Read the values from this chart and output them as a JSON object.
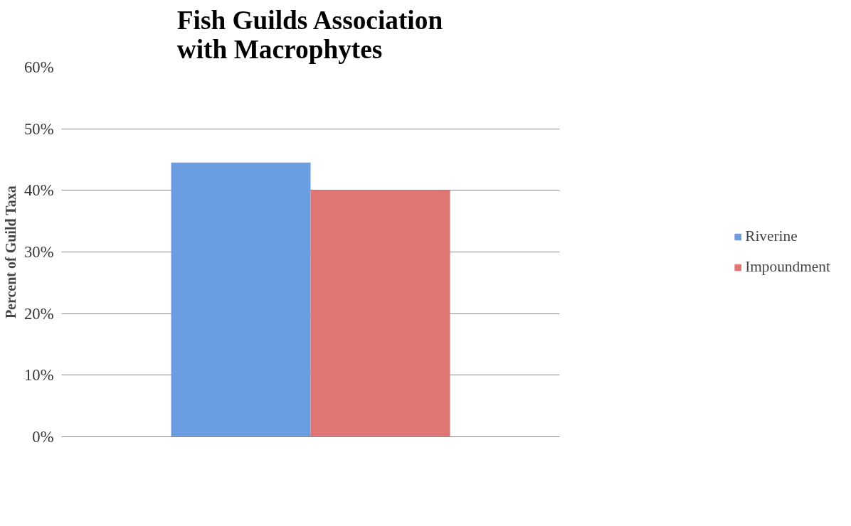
{
  "chart_data": {
    "type": "bar",
    "title": "Fish Guilds Association\nwith Macrophytes",
    "ylabel": "Percent of Guild Taxa",
    "categories": [
      null
    ],
    "series": [
      {
        "name": "Riverine",
        "color": "#6b9de3",
        "values": [
          44.5
        ]
      },
      {
        "name": "Impoundment",
        "color": "#e07674",
        "values": [
          40.0
        ]
      }
    ],
    "ylim": [
      0,
      60
    ],
    "yticks": [
      {
        "value": 0,
        "label": "0%"
      },
      {
        "value": 10,
        "label": "10%"
      },
      {
        "value": 20,
        "label": "20%"
      },
      {
        "value": 30,
        "label": "30%"
      },
      {
        "value": 40,
        "label": "40%"
      },
      {
        "value": 50,
        "label": "50%"
      },
      {
        "value": 60,
        "label": "60%"
      }
    ],
    "grid": "y",
    "legend": "right"
  }
}
